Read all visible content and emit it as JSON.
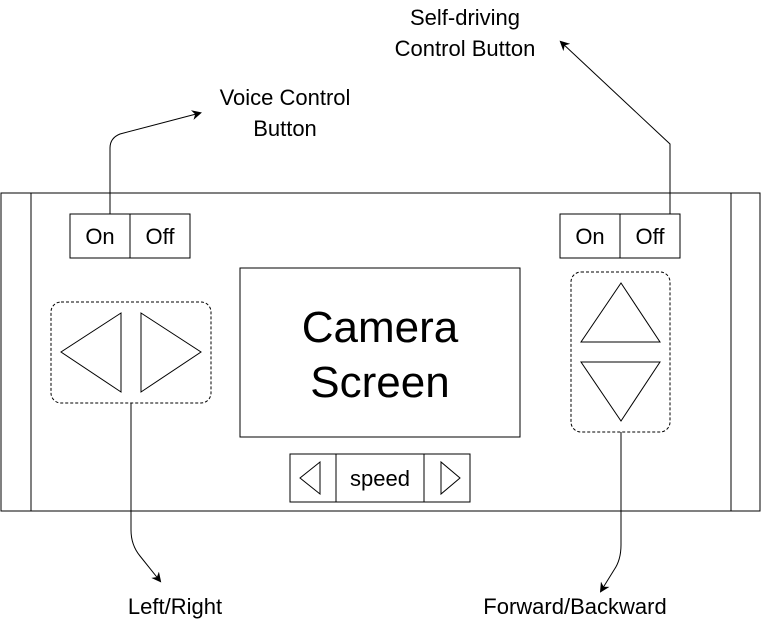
{
  "annotations": {
    "self_driving_line1": "Self-driving",
    "self_driving_line2": "Control Button",
    "voice_line1": "Voice Control",
    "voice_line2": "Button",
    "left_right": "Left/Right",
    "forward_backward": "Forward/Backward"
  },
  "voice_toggle": {
    "on_label": "On",
    "off_label": "Off"
  },
  "self_driving_toggle": {
    "on_label": "On",
    "off_label": "Off"
  },
  "camera": {
    "line1": "Camera",
    "line2": "Screen"
  },
  "speed": {
    "label": "speed"
  },
  "colors": {
    "stroke": "#000000",
    "background": "#ffffff"
  }
}
